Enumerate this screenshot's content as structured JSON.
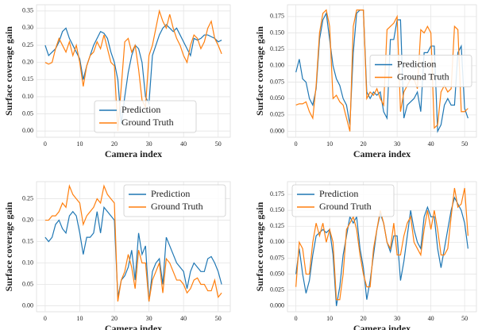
{
  "chart_data": [
    {
      "type": "line",
      "xlabel": "Camera index",
      "ylabel": "Surface coverage gain",
      "legend_loc": "lower center",
      "grid": true,
      "x": [
        0,
        1,
        2,
        3,
        4,
        5,
        6,
        7,
        8,
        9,
        10,
        11,
        12,
        13,
        14,
        15,
        16,
        17,
        18,
        19,
        20,
        21,
        22,
        23,
        24,
        25,
        26,
        27,
        28,
        29,
        30,
        31,
        32,
        33,
        34,
        35,
        36,
        37,
        38,
        39,
        40,
        41,
        42,
        43,
        44,
        45,
        46,
        47,
        48,
        49,
        50,
        51
      ],
      "xlim": [
        -2.5,
        53.5
      ],
      "xticks": [
        0,
        10,
        20,
        30,
        40,
        50
      ],
      "ylim": [
        -0.018,
        0.368
      ],
      "yticks": [
        {
          "value": 0,
          "label": "0.00"
        },
        {
          "value": 0.05,
          "label": "0.05"
        },
        {
          "value": 0.1,
          "label": "0.10"
        },
        {
          "value": 0.15,
          "label": "0.15"
        },
        {
          "value": 0.2,
          "label": "0.20"
        },
        {
          "value": 0.25,
          "label": "0.25"
        },
        {
          "value": 0.3,
          "label": "0.30"
        },
        {
          "value": 0.35,
          "label": "0.35"
        }
      ],
      "series": [
        {
          "name": "Prediction",
          "color": "#1f77b4",
          "values": [
            0.25,
            0.22,
            0.23,
            0.24,
            0.26,
            0.29,
            0.3,
            0.27,
            0.25,
            0.23,
            0.21,
            0.15,
            0.19,
            0.22,
            0.25,
            0.27,
            0.29,
            0.285,
            0.27,
            0.23,
            0.2,
            0.15,
            0.02,
            0.1,
            0.17,
            0.22,
            0.25,
            0.24,
            0.2,
            0.1,
            0.08,
            0.22,
            0.25,
            0.28,
            0.3,
            0.31,
            0.3,
            0.29,
            0.3,
            0.28,
            0.26,
            0.24,
            0.22,
            0.27,
            0.265,
            0.27,
            0.28,
            0.28,
            0.275,
            0.27,
            0.26,
            0.265
          ]
        },
        {
          "name": "Ground Truth",
          "color": "#ff7f0e",
          "values": [
            0.2,
            0.195,
            0.2,
            0.24,
            0.27,
            0.25,
            0.23,
            0.26,
            0.22,
            0.25,
            0.2,
            0.13,
            0.19,
            0.22,
            0.23,
            0.26,
            0.24,
            0.28,
            0.24,
            0.2,
            0.19,
            0.0,
            0.13,
            0.26,
            0.27,
            0.23,
            0.25,
            0.18,
            0.09,
            0.07,
            0.22,
            0.25,
            0.3,
            0.35,
            0.32,
            0.3,
            0.34,
            0.3,
            0.27,
            0.25,
            0.22,
            0.2,
            0.25,
            0.28,
            0.27,
            0.24,
            0.26,
            0.3,
            0.32,
            0.27,
            0.25,
            0.225
          ]
        }
      ]
    },
    {
      "type": "line",
      "xlabel": "Camera index",
      "ylabel": "Surface coverage gain",
      "legend_loc": "center right",
      "grid": true,
      "x": [
        0,
        1,
        2,
        3,
        4,
        5,
        6,
        7,
        8,
        9,
        10,
        11,
        12,
        13,
        14,
        15,
        16,
        17,
        18,
        19,
        20,
        21,
        22,
        23,
        24,
        25,
        26,
        27,
        28,
        29,
        30,
        31,
        32,
        33,
        34,
        35,
        36,
        37,
        38,
        39,
        40,
        41,
        42,
        43,
        44,
        45,
        46,
        47,
        48,
        49,
        50,
        51
      ],
      "xlim": [
        -2.5,
        53.5
      ],
      "xticks": [
        0,
        10,
        20,
        30,
        40,
        50
      ],
      "ylim": [
        -0.009,
        0.193
      ],
      "yticks": [
        {
          "value": 0,
          "label": "0.000"
        },
        {
          "value": 0.025,
          "label": "0.025"
        },
        {
          "value": 0.05,
          "label": "0.050"
        },
        {
          "value": 0.075,
          "label": "0.075"
        },
        {
          "value": 0.1,
          "label": "0.100"
        },
        {
          "value": 0.125,
          "label": "0.125"
        },
        {
          "value": 0.15,
          "label": "0.150"
        },
        {
          "value": 0.175,
          "label": "0.175"
        }
      ],
      "series": [
        {
          "name": "Prediction",
          "color": "#1f77b4",
          "values": [
            0.09,
            0.11,
            0.08,
            0.075,
            0.05,
            0.04,
            0.065,
            0.14,
            0.17,
            0.18,
            0.14,
            0.1,
            0.08,
            0.07,
            0.05,
            0.04,
            0.01,
            0.12,
            0.18,
            0.185,
            0.185,
            0.06,
            0.05,
            0.06,
            0.055,
            0.06,
            0.03,
            0.02,
            0.14,
            0.14,
            0.17,
            0.17,
            0.02,
            0.04,
            0.045,
            0.05,
            0.06,
            0.03,
            0.12,
            0.12,
            0.13,
            0.13,
            0.0,
            0.01,
            0.04,
            0.05,
            0.04,
            0.04,
            0.12,
            0.13,
            0.035,
            0.02
          ]
        },
        {
          "name": "Ground Truth",
          "color": "#ff7f0e",
          "values": [
            0.04,
            0.042,
            0.042,
            0.045,
            0.03,
            0.02,
            0.07,
            0.15,
            0.18,
            0.185,
            0.16,
            0.05,
            0.055,
            0.045,
            0.04,
            0.02,
            0.0,
            0.16,
            0.185,
            0.185,
            0.185,
            0.05,
            0.06,
            0.055,
            0.065,
            0.05,
            0.04,
            0.155,
            0.16,
            0.165,
            0.175,
            0.03,
            0.06,
            0.07,
            0.08,
            0.08,
            0.065,
            0.155,
            0.15,
            0.16,
            0.15,
            0.005,
            0.01,
            0.06,
            0.07,
            0.06,
            0.065,
            0.16,
            0.155,
            0.03,
            0.03,
            0.035
          ]
        }
      ]
    },
    {
      "type": "line",
      "xlabel": "Camera index",
      "ylabel": "Surface coverage gain",
      "legend_loc": "upper right",
      "grid": true,
      "x": [
        0,
        1,
        2,
        3,
        4,
        5,
        6,
        7,
        8,
        9,
        10,
        11,
        12,
        13,
        14,
        15,
        16,
        17,
        18,
        19,
        20,
        21,
        22,
        23,
        24,
        25,
        26,
        27,
        28,
        29,
        30,
        31,
        32,
        33,
        34,
        35,
        36,
        37,
        38,
        39,
        40,
        41,
        42,
        43,
        44,
        45,
        46,
        47,
        48,
        49,
        50,
        51
      ],
      "xlim": [
        -2.5,
        53.5
      ],
      "xticks": [
        0,
        10,
        20,
        30,
        40,
        50
      ],
      "ylim": [
        -0.014,
        0.29
      ],
      "yticks": [
        {
          "value": 0,
          "label": "0.00"
        },
        {
          "value": 0.05,
          "label": "0.05"
        },
        {
          "value": 0.1,
          "label": "0.10"
        },
        {
          "value": 0.15,
          "label": "0.15"
        },
        {
          "value": 0.2,
          "label": "0.20"
        },
        {
          "value": 0.25,
          "label": "0.25"
        }
      ],
      "series": [
        {
          "name": "Prediction",
          "color": "#1f77b4",
          "values": [
            0.16,
            0.15,
            0.16,
            0.19,
            0.2,
            0.18,
            0.17,
            0.21,
            0.22,
            0.21,
            0.17,
            0.12,
            0.16,
            0.16,
            0.17,
            0.22,
            0.17,
            0.23,
            0.22,
            0.21,
            0.2,
            0.02,
            0.06,
            0.07,
            0.09,
            0.13,
            0.06,
            0.17,
            0.12,
            0.14,
            0.01,
            0.08,
            0.1,
            0.11,
            0.05,
            0.16,
            0.14,
            0.12,
            0.1,
            0.09,
            0.08,
            0.04,
            0.08,
            0.1,
            0.09,
            0.08,
            0.08,
            0.11,
            0.115,
            0.1,
            0.08,
            0.05
          ]
        },
        {
          "name": "Ground Truth",
          "color": "#ff7f0e",
          "values": [
            0.2,
            0.2,
            0.21,
            0.21,
            0.22,
            0.24,
            0.23,
            0.28,
            0.26,
            0.25,
            0.24,
            0.19,
            0.21,
            0.22,
            0.23,
            0.25,
            0.24,
            0.28,
            0.26,
            0.25,
            0.24,
            0.01,
            0.06,
            0.08,
            0.12,
            0.09,
            0.04,
            0.13,
            0.1,
            0.1,
            0.01,
            0.06,
            0.08,
            0.1,
            0.03,
            0.11,
            0.1,
            0.08,
            0.06,
            0.06,
            0.05,
            0.03,
            0.04,
            0.06,
            0.065,
            0.05,
            0.05,
            0.035,
            0.035,
            0.06,
            0.02,
            0.03
          ]
        }
      ]
    },
    {
      "type": "line",
      "xlabel": "Camera index",
      "ylabel": "Surface coverage gain",
      "legend_loc": "upper left",
      "grid": true,
      "x": [
        0,
        1,
        2,
        3,
        4,
        5,
        6,
        7,
        8,
        9,
        10,
        11,
        12,
        13,
        14,
        15,
        16,
        17,
        18,
        19,
        20,
        21,
        22,
        23,
        24,
        25,
        26,
        27,
        28,
        29,
        30,
        31,
        32,
        33,
        34,
        35,
        36,
        37,
        38,
        39,
        40,
        41,
        42,
        43,
        44,
        45,
        46,
        47,
        48,
        49,
        50,
        51
      ],
      "xlim": [
        -2.5,
        53.5
      ],
      "xticks": [
        0,
        10,
        20,
        30,
        40,
        50
      ],
      "ylim": [
        -0.009,
        0.195
      ],
      "yticks": [
        {
          "value": 0,
          "label": "0.000"
        },
        {
          "value": 0.025,
          "label": "0.025"
        },
        {
          "value": 0.05,
          "label": "0.050"
        },
        {
          "value": 0.075,
          "label": "0.075"
        },
        {
          "value": 0.1,
          "label": "0.100"
        },
        {
          "value": 0.125,
          "label": "0.125"
        },
        {
          "value": 0.15,
          "label": "0.150"
        },
        {
          "value": 0.175,
          "label": "0.175"
        }
      ],
      "series": [
        {
          "name": "Prediction",
          "color": "#1f77b4",
          "values": [
            0.05,
            0.09,
            0.05,
            0.02,
            0.04,
            0.08,
            0.11,
            0.115,
            0.12,
            0.115,
            0.12,
            0.08,
            0.0,
            0.03,
            0.08,
            0.11,
            0.14,
            0.13,
            0.14,
            0.09,
            0.06,
            0.01,
            0.04,
            0.08,
            0.12,
            0.145,
            0.13,
            0.1,
            0.085,
            0.11,
            0.11,
            0.04,
            0.07,
            0.11,
            0.15,
            0.12,
            0.1,
            0.09,
            0.14,
            0.155,
            0.14,
            0.14,
            0.09,
            0.06,
            0.09,
            0.12,
            0.15,
            0.17,
            0.16,
            0.15,
            0.13,
            0.09
          ]
        },
        {
          "name": "Ground Truth",
          "color": "#ff7f0e",
          "values": [
            0.03,
            0.1,
            0.09,
            0.05,
            0.05,
            0.1,
            0.13,
            0.11,
            0.13,
            0.1,
            0.12,
            0.1,
            0.01,
            0.01,
            0.05,
            0.12,
            0.13,
            0.14,
            0.12,
            0.08,
            0.05,
            0.03,
            0.03,
            0.09,
            0.12,
            0.15,
            0.13,
            0.1,
            0.09,
            0.13,
            0.08,
            0.08,
            0.11,
            0.13,
            0.14,
            0.1,
            0.09,
            0.08,
            0.12,
            0.15,
            0.12,
            0.15,
            0.12,
            0.08,
            0.08,
            0.09,
            0.14,
            0.185,
            0.155,
            0.16,
            0.185,
            0.11
          ]
        }
      ]
    }
  ]
}
